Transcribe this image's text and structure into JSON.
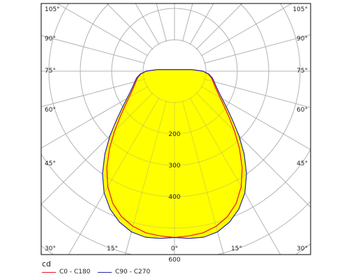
{
  "chart_data": {
    "type": "polar",
    "unit": "cd",
    "angle_ticks_left": [
      "105°",
      "90°",
      "75°",
      "60°",
      "45°",
      "30°"
    ],
    "angle_ticks_right": [
      "105°",
      "90°",
      "75°",
      "60°",
      "45°",
      "30°"
    ],
    "angle_ticks_bottom": [
      "15°",
      "0°",
      "15°"
    ],
    "radial_labels": [
      "200",
      "300",
      "400",
      "600"
    ],
    "radial_label_values": [
      200,
      300,
      400,
      600
    ],
    "r_max": 700,
    "grid": true,
    "fill_color": "#ffff00",
    "series": [
      {
        "name": "C0 - C180",
        "color": "#e8141e",
        "angles": [
          0,
          5,
          10,
          15,
          20,
          25,
          30,
          35,
          40,
          45,
          50,
          55,
          60,
          65,
          70,
          75,
          80,
          85,
          90,
          95
        ],
        "values": [
          530,
          527,
          523,
          512,
          493,
          465,
          425,
          376,
          322,
          270,
          226,
          192,
          167,
          149,
          136,
          127,
          119,
          108,
          90,
          55
        ]
      },
      {
        "name": "C90 - C270",
        "color": "#2828a0",
        "angles": [
          0,
          5,
          10,
          15,
          20,
          25,
          30,
          35,
          40,
          45,
          50,
          55,
          60,
          65,
          70,
          75,
          80,
          85,
          90,
          95
        ],
        "values": [
          530,
          535,
          537,
          530,
          512,
          485,
          448,
          400,
          345,
          290,
          240,
          203,
          175,
          155,
          141,
          131,
          122,
          110,
          91,
          55
        ]
      }
    ]
  }
}
